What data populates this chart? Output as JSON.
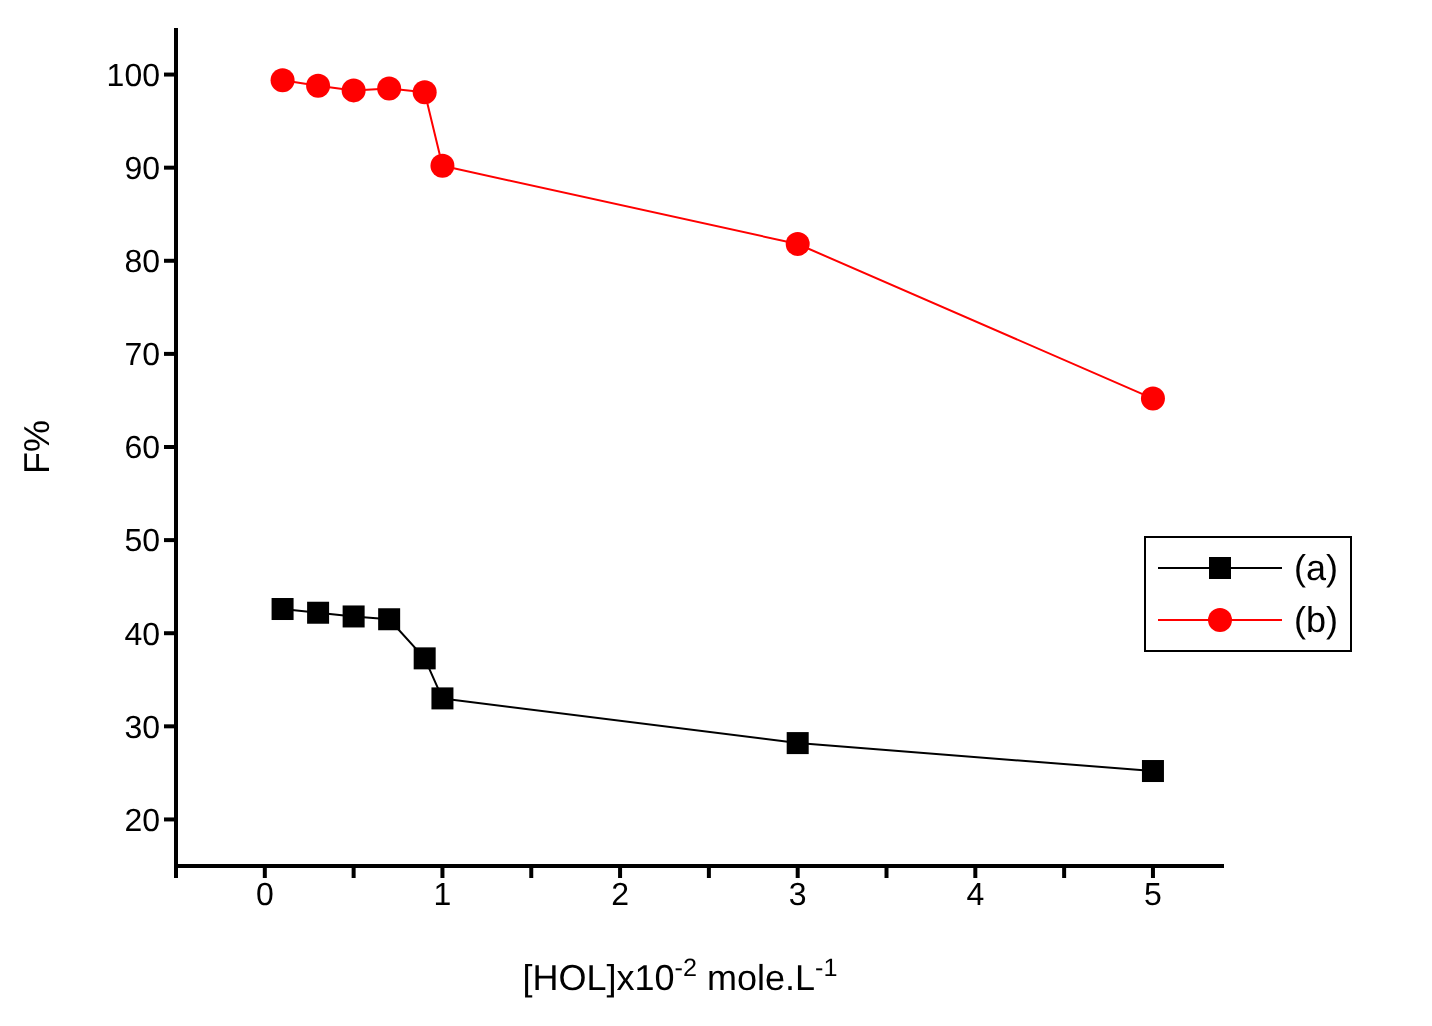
{
  "chart_data": {
    "type": "line",
    "xlabel": "[HOL]x10$^{-2}$ mole.L$^{-1}$",
    "ylabel": "F%",
    "x": [
      0.1,
      0.3,
      0.5,
      0.7,
      0.9,
      1,
      3,
      5
    ],
    "series": [
      {
        "name": "(a)",
        "color": "#000000",
        "marker": "square",
        "values": [
          42.6,
          42.2,
          41.8,
          41.5,
          37.3,
          33,
          28.2,
          25.2
        ]
      },
      {
        "name": "(b)",
        "color": "#ff0000",
        "marker": "circle",
        "values": [
          99.4,
          98.8,
          98.3,
          98.5,
          98.1,
          90.2,
          81.8,
          65.2
        ]
      }
    ],
    "xlim": [
      -0.5,
      5.4
    ],
    "xticks": [
      {
        "value": -0.5,
        "label": null
      },
      0,
      {
        "value": 0.5,
        "label": null
      },
      1,
      {
        "value": 1.5,
        "label": null
      },
      2,
      {
        "value": 2.5,
        "label": null
      },
      3,
      {
        "value": 3.5,
        "label": null
      },
      4,
      {
        "value": 4.5,
        "label": null
      },
      5
    ],
    "ylim": [
      15,
      105
    ],
    "yticks": [
      20,
      30,
      40,
      50,
      60,
      70,
      80,
      90,
      100
    ],
    "grid": false,
    "legend": "right",
    "line_style": "solid"
  }
}
